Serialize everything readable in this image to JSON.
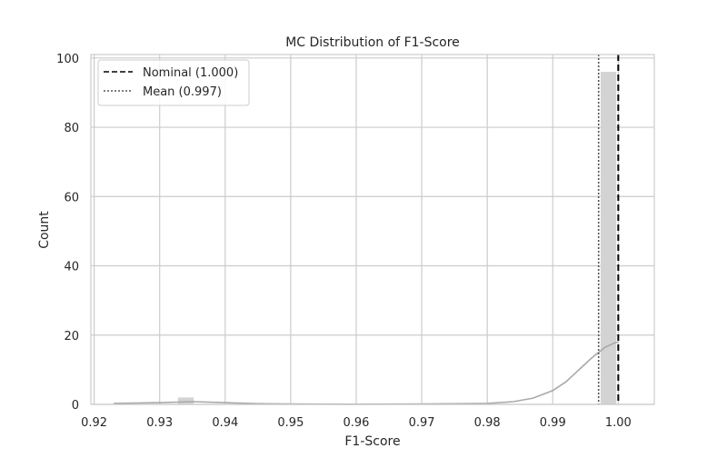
{
  "chart_data": {
    "type": "bar",
    "title": "MC Distribution of F1-Score",
    "xlabel": "F1-Score",
    "ylabel": "Count",
    "xlim": [
      0.9195,
      1.0055
    ],
    "ylim": [
      0,
      101
    ],
    "x_ticks": [
      "0.92",
      "0.93",
      "0.94",
      "0.95",
      "0.96",
      "0.97",
      "0.98",
      "0.99",
      "1.00"
    ],
    "x_tick_values": [
      0.92,
      0.93,
      0.94,
      0.95,
      0.96,
      0.97,
      0.98,
      0.99,
      1.0
    ],
    "y_ticks": [
      "0",
      "20",
      "40",
      "60",
      "80",
      "100"
    ],
    "y_tick_values": [
      0,
      20,
      40,
      60,
      80,
      100
    ],
    "grid": true,
    "legend_position": "top-left",
    "histogram": [
      {
        "x0": 0.9328,
        "x1": 0.9352,
        "count": 2
      },
      {
        "x0": 0.9973,
        "x1": 0.9997,
        "count": 96
      }
    ],
    "kde": {
      "x": [
        0.923,
        0.93,
        0.935,
        0.94,
        0.945,
        0.95,
        0.96,
        0.97,
        0.98,
        0.984,
        0.987,
        0.99,
        0.992,
        0.994,
        0.996,
        0.998,
        0.9995,
        1.0
      ],
      "y": [
        0.3,
        0.5,
        0.8,
        0.5,
        0.2,
        0.1,
        0.05,
        0.1,
        0.3,
        0.8,
        1.8,
        4.0,
        6.5,
        10.0,
        13.5,
        16.5,
        17.8,
        18.0
      ]
    },
    "ref_lines": [
      {
        "label": "Nominal (1.000)",
        "x": 1.0,
        "style": "dashed",
        "color": "#000000"
      },
      {
        "label": "Mean (0.997)",
        "x": 0.997,
        "style": "dotted",
        "color": "#555555"
      }
    ],
    "colors": {
      "bar": "#d3d3d3",
      "kde": "#a9a9a9",
      "grid": "#cccccc"
    }
  }
}
